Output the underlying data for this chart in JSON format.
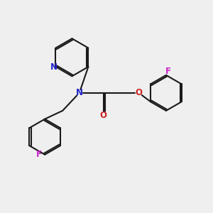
{
  "bg_color": "#efefef",
  "bond_color": "#1a1a1a",
  "N_color": "#2222cc",
  "O_color": "#cc2222",
  "F_color": "#cc22cc",
  "line_width": 1.5,
  "font_size_atom": 8.5,
  "xlim": [
    0,
    10
  ],
  "ylim": [
    0,
    10
  ]
}
